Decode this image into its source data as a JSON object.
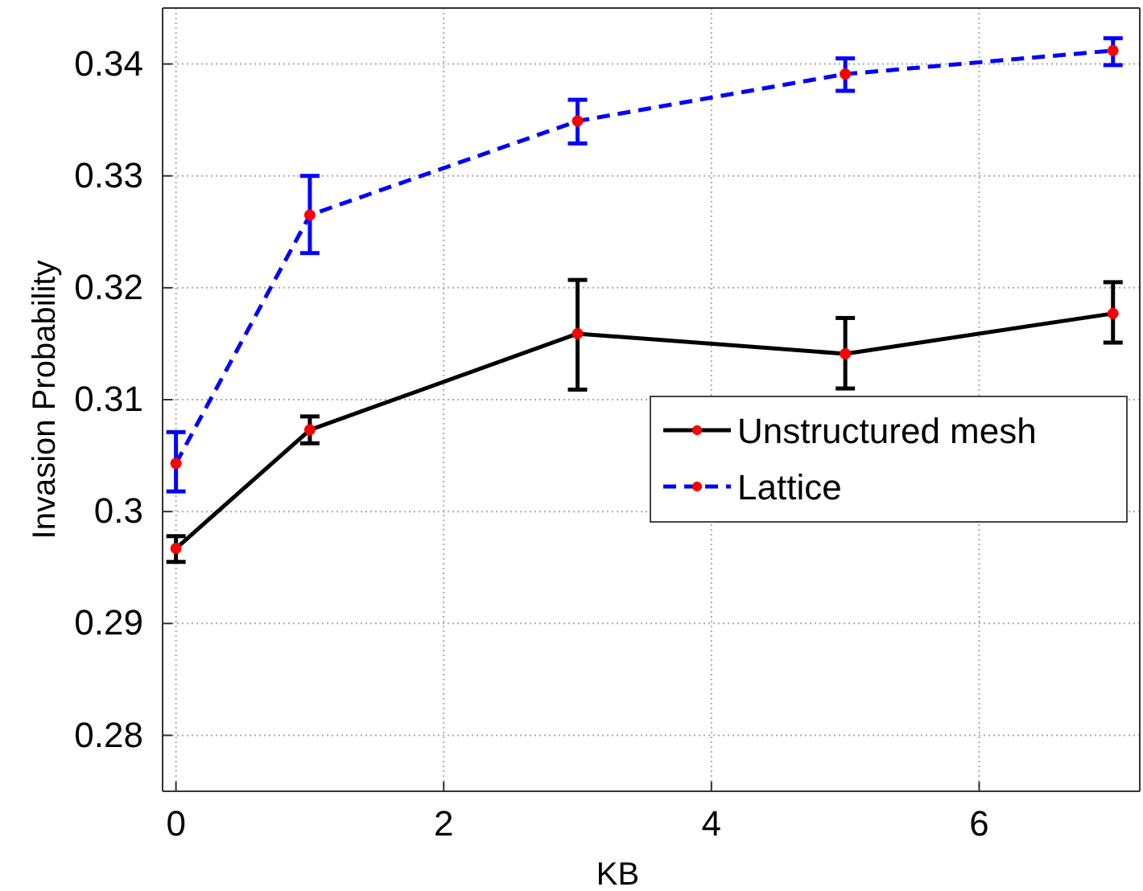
{
  "chart_data": {
    "type": "line",
    "xlabel": "KB",
    "ylabel": "Invasion Probability",
    "x": [
      0,
      1,
      3,
      5,
      7
    ],
    "series": [
      {
        "name": "Unstructured mesh",
        "color": "#000000",
        "line_style": "solid",
        "values": [
          0.2967,
          0.3073,
          0.3159,
          0.3141,
          0.3177
        ],
        "errors": [
          [
            0.2955,
            0.2978
          ],
          [
            0.3061,
            0.3085
          ],
          [
            0.3109,
            0.3207
          ],
          [
            0.311,
            0.3173
          ],
          [
            0.3151,
            0.3205
          ]
        ]
      },
      {
        "name": "Lattice",
        "color": "#0000ff",
        "line_style": "dashed",
        "values": [
          0.3043,
          0.3265,
          0.3349,
          0.3391,
          0.3412
        ],
        "errors": [
          [
            0.3018,
            0.3071
          ],
          [
            0.3231,
            0.33
          ],
          [
            0.3329,
            0.3368
          ],
          [
            0.3376,
            0.3405
          ],
          [
            0.3399,
            0.3423
          ]
        ]
      }
    ],
    "xlim": [
      -0.1,
      7.2
    ],
    "xticks": [
      0,
      2,
      4,
      6
    ],
    "ylim": [
      0.275,
      0.345
    ],
    "yticks": [
      0.28,
      0.29,
      0.3,
      0.31,
      0.32,
      0.33,
      0.34
    ],
    "grid": true,
    "legend": "right",
    "marker": "circle"
  }
}
